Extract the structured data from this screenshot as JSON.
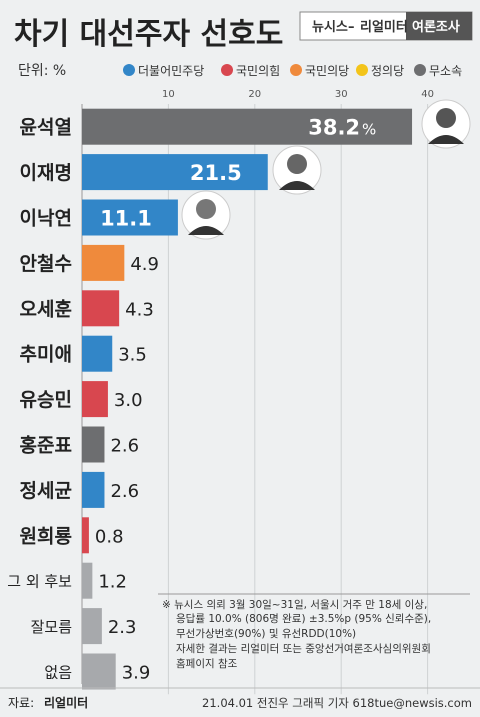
{
  "header": {
    "title": "차기 대선주자 선호도",
    "brand_left": "뉴시스",
    "brand_sep": "–",
    "brand_mid": "리얼미터",
    "brand_right": "여론조사"
  },
  "unit_label": "단위: %",
  "legend": [
    {
      "label": "더불어민주당",
      "color": "#3286c8"
    },
    {
      "label": "국민의힘",
      "color": "#d8474f"
    },
    {
      "label": "국민의당",
      "color": "#ef8a3c"
    },
    {
      "label": "정의당",
      "color": "#f3c41a"
    },
    {
      "label": "무소속",
      "color": "#6d6e70"
    }
  ],
  "chart_data": {
    "type": "bar",
    "orientation": "horizontal",
    "x_ticks": [
      "10",
      "20",
      "30",
      "40"
    ],
    "xlim": [
      0,
      40
    ],
    "categories": [
      "윤석열",
      "이재명",
      "이낙연",
      "안철수",
      "오세훈",
      "추미애",
      "유승민",
      "홍준표",
      "정세균",
      "원희룡",
      "그 외 후보",
      "잘모름",
      "없음"
    ],
    "values": [
      38.2,
      21.5,
      11.1,
      4.9,
      4.3,
      3.5,
      3.0,
      2.6,
      2.6,
      0.8,
      1.2,
      2.3,
      3.9
    ],
    "value_labels": [
      "38.2",
      "21.5",
      "11.1",
      "4.9",
      "4.3",
      "3.5",
      "3.0",
      "2.6",
      "2.6",
      "0.8",
      "1.2",
      "2.3",
      "3.9"
    ],
    "percent_suffix": "%",
    "colors": [
      "#6d6e70",
      "#3286c8",
      "#3286c8",
      "#ef8a3c",
      "#d8474f",
      "#3286c8",
      "#d8474f",
      "#6d6e70",
      "#3286c8",
      "#d8474f",
      "#a7a9ac",
      "#a7a9ac",
      "#a7a9ac"
    ]
  },
  "notes": [
    "※ 뉴시스 의뢰 3월 30일~31일, 서울시 거주 만 18세 이상,",
    "응답률 10.0% (806명 완료) ±3.5%p (95% 신뢰수준),",
    "무선가상번호(90%) 및 유선RDD(10%)",
    "자세한 결과는 리얼미터 또는 중앙선거여론조사심의위원회",
    "홈페이지 참조"
  ],
  "footer": {
    "source_prefix": "자료:",
    "source_name": "리얼미터",
    "credit": "21.04.01 전진우 그래픽 기자 618tue@newsis.com"
  }
}
